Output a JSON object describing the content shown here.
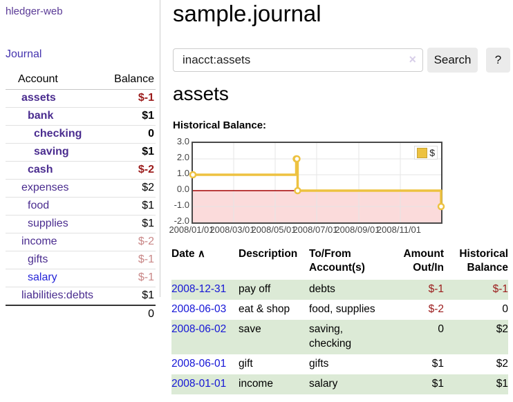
{
  "app": {
    "title": "hledger-web"
  },
  "sidebar": {
    "journal_label": "Journal",
    "headers": {
      "account": "Account",
      "balance": "Balance"
    },
    "accounts": [
      {
        "name": "assets",
        "balance": "$-1"
      },
      {
        "name": "bank",
        "balance": "$1"
      },
      {
        "name": "checking",
        "balance": "0"
      },
      {
        "name": "saving",
        "balance": "$1"
      },
      {
        "name": "cash",
        "balance": "$-2"
      },
      {
        "name": "expenses",
        "balance": "$2"
      },
      {
        "name": "food",
        "balance": "$1"
      },
      {
        "name": "supplies",
        "balance": "$1"
      },
      {
        "name": "income",
        "balance": "$-2"
      },
      {
        "name": "gifts",
        "balance": "$-1"
      },
      {
        "name": "salary",
        "balance": "$-1"
      },
      {
        "name": "liabilities:debts",
        "balance": "$1"
      }
    ],
    "total": "0"
  },
  "main": {
    "title": "sample.journal",
    "search": {
      "value": "inacct:assets",
      "clear_icon": "×",
      "button_label": "Search",
      "help_label": "?"
    },
    "account_heading": "assets",
    "chart_label": "Historical Balance:"
  },
  "chart_data": {
    "type": "line",
    "step": true,
    "title": "Historical Balance:",
    "series": [
      {
        "name": "$",
        "color": "#edc240",
        "points": [
          [
            "2008-01-01",
            1
          ],
          [
            "2008-06-01",
            2
          ],
          [
            "2008-06-02",
            2
          ],
          [
            "2008-06-03",
            0
          ],
          [
            "2008-12-31",
            -1
          ]
        ]
      }
    ],
    "xlim": [
      "2008-01-01",
      "2008-12-31"
    ],
    "ylim": [
      -2,
      3
    ],
    "yticks": [
      "3.0",
      "2.0",
      "1.0",
      "0.0",
      "-1.0",
      "-2.0"
    ],
    "xticks": [
      "2008/01/01",
      "2008/03/01",
      "2008/05/01",
      "2008/07/01",
      "2008/09/01",
      "2008/11/01"
    ],
    "grid": true,
    "legend_position": "top-right",
    "negative_region_color": "#fbdbdb",
    "zero_line_color": "#a40000"
  },
  "register": {
    "headers": {
      "date": "Date",
      "sort_icon": "∧",
      "description": "Description",
      "account_line1": "To/From",
      "account_line2": "Account(s)",
      "amount_line1": "Amount",
      "amount_line2": "Out/In",
      "balance_line1": "Historical",
      "balance_line2": "Balance"
    },
    "rows": [
      {
        "date": "2008-12-31",
        "description": "pay off",
        "accounts": "debts",
        "amount": "$-1",
        "balance": "$-1"
      },
      {
        "date": "2008-06-03",
        "description": "eat & shop",
        "accounts": "food, supplies",
        "amount": "$-2",
        "balance": "0"
      },
      {
        "date": "2008-06-02",
        "description": "save",
        "accounts": "saving, checking",
        "amount": "0",
        "balance": "$2"
      },
      {
        "date": "2008-06-01",
        "description": "gift",
        "accounts": "gifts",
        "amount": "$1",
        "balance": "$2"
      },
      {
        "date": "2008-01-01",
        "description": "income",
        "accounts": "salary",
        "amount": "$1",
        "balance": "$1"
      }
    ]
  },
  "colors": {
    "accent_purple": "#4a2c8f",
    "link_blue": "#1414d6",
    "negative_strong": "#9b1b1b",
    "negative_soft": "#c98787",
    "row_green": "#dcead6",
    "series_gold": "#edc240"
  }
}
